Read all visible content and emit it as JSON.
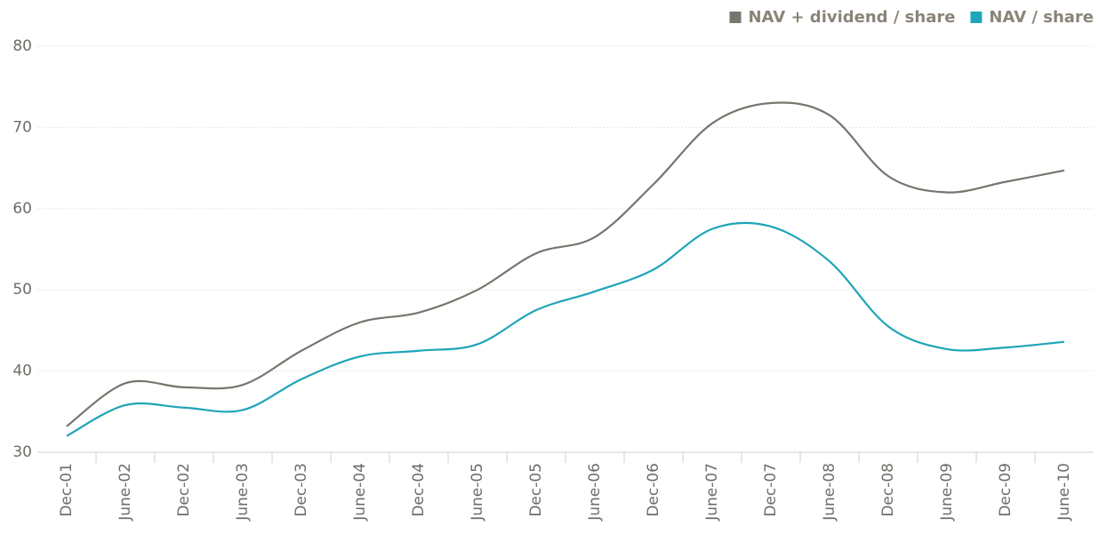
{
  "chart_data": {
    "type": "line",
    "categories": [
      "Dec-01",
      "June-02",
      "Dec-02",
      "June-03",
      "Dec-03",
      "June-04",
      "Dec-04",
      "June-05",
      "Dec-05",
      "June-06",
      "Dec-06",
      "June-07",
      "Dec-07",
      "June-08",
      "Dec-08",
      "June-09",
      "Dec-09",
      "June-10"
    ],
    "series": [
      {
        "name": "NAV + dividend / share",
        "color": "#76766e",
        "values": [
          33.2,
          38.5,
          38.0,
          38.3,
          42.5,
          46.0,
          47.2,
          50.0,
          54.5,
          56.5,
          63.0,
          70.5,
          73.0,
          71.5,
          64.0,
          62.0,
          63.3,
          64.7
        ]
      },
      {
        "name": "NAV / share",
        "color": "#1ea5b8",
        "values": [
          32.0,
          35.8,
          35.5,
          35.2,
          39.0,
          41.8,
          42.5,
          43.3,
          47.5,
          49.8,
          52.5,
          57.5,
          57.8,
          53.5,
          45.5,
          42.7,
          42.9,
          43.6
        ]
      }
    ],
    "ylim": [
      30,
      80
    ],
    "yticks": [
      30,
      40,
      50,
      60,
      70,
      80
    ],
    "grid": true,
    "legend": "top-right"
  }
}
